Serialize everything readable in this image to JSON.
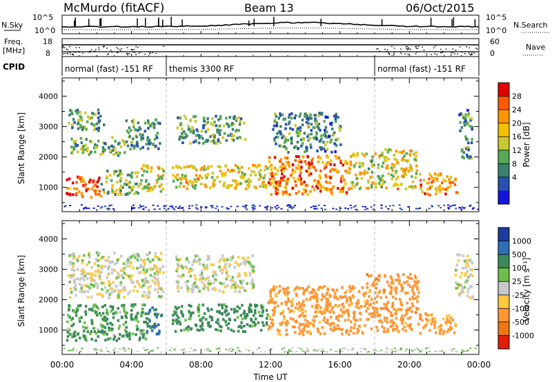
{
  "header": {
    "station": "McMurdo (fitACF)",
    "beam": "Beam 13",
    "date": "06/Oct/2015"
  },
  "top_panels": {
    "nsky_label": "N.Sky",
    "nsky_ticks": [
      "10^5",
      "10^0"
    ],
    "nsearch_label": "N.Search",
    "nsearch_ticks": [
      "10^5",
      "10^0"
    ],
    "freq_label_line1": "Freq.",
    "freq_label_line2": "[MHz]",
    "freq_ticks": [
      "18",
      "8"
    ],
    "nave_label": "Nave",
    "nave_ticks": [
      "60",
      "0"
    ],
    "cpid_label": "CPID",
    "cpid_segments": [
      {
        "label": "normal (fast) -151 RF",
        "start_h": 0,
        "end_h": 6
      },
      {
        "label": "themis 3300 RF",
        "start_h": 6,
        "end_h": 18
      },
      {
        "label": "normal (fast) -151 RF",
        "start_h": 18,
        "end_h": 24
      }
    ]
  },
  "power_panel": {
    "ylabel": "Slant Range [km]",
    "colorbar_label": "Power [dB]",
    "colorbar_ticks": [
      "28",
      "24",
      "20",
      "16",
      "12",
      "8",
      "4"
    ],
    "colors": [
      "#e00000",
      "#ff5a00",
      "#ff9600",
      "#f4c000",
      "#c8c832",
      "#55aa55",
      "#3c7f6e",
      "#2850b0",
      "#1414dc"
    ]
  },
  "velocity_panel": {
    "ylabel": "Slant Range [km]",
    "colorbar_label": "Velocity [m s⁻¹]",
    "colorbar_ticks": [
      "1000",
      "500",
      "100",
      "25",
      "-25",
      "-100",
      "-500",
      "-1000"
    ],
    "colors": [
      "#1e3ca0",
      "#2e6eb4",
      "#3c8a5a",
      "#6cc04a",
      "#c8c8c8",
      "#ffc840",
      "#ff9632",
      "#f07814",
      "#e01e0a"
    ]
  },
  "x_axis": {
    "label": "Time UT",
    "tick_labels": [
      "00:00",
      "04:00",
      "08:00",
      "12:00",
      "16:00",
      "20:00",
      "00:00"
    ]
  },
  "chart_data": {
    "type": "heatmap",
    "title": "McMurdo (fitACF)   Beam 13   06/Oct/2015",
    "xlabel": "Time UT",
    "ylabel": "Slant Range [km]",
    "xlim": [
      0,
      24
    ],
    "ylim": [
      200,
      4600
    ],
    "x_ticks": [
      "00:00",
      "04:00",
      "08:00",
      "12:00",
      "16:00",
      "20:00",
      "00:00"
    ],
    "y_ticks": [
      1000,
      2000,
      3000,
      4000
    ],
    "panels": [
      {
        "name": "Power",
        "units": "dB",
        "scale": [
          0,
          30
        ],
        "ticks": [
          4,
          8,
          12,
          16,
          20,
          24,
          28
        ],
        "regions": [
          {
            "t0": 0.2,
            "t1": 2.2,
            "r0": 600,
            "r1": 1300,
            "level": 26
          },
          {
            "t0": 2.2,
            "t1": 4.4,
            "r0": 700,
            "r1": 1500,
            "level": 14
          },
          {
            "t0": 4.4,
            "t1": 5.8,
            "r0": 800,
            "r1": 1700,
            "level": 16
          },
          {
            "t0": 0.4,
            "t1": 3.6,
            "r0": 2000,
            "r1": 2600,
            "level": 11
          },
          {
            "t0": 3.6,
            "t1": 5.6,
            "r0": 2200,
            "r1": 3200,
            "level": 9
          },
          {
            "t0": 0.3,
            "t1": 2.4,
            "r0": 2800,
            "r1": 3500,
            "level": 10
          },
          {
            "t0": 6.3,
            "t1": 11.8,
            "r0": 900,
            "r1": 1700,
            "level": 18
          },
          {
            "t0": 6.5,
            "t1": 10.5,
            "r0": 2400,
            "r1": 3300,
            "level": 10
          },
          {
            "t0": 11.8,
            "t1": 16.5,
            "r0": 700,
            "r1": 2000,
            "level": 24
          },
          {
            "t0": 12.0,
            "t1": 16.0,
            "r0": 2100,
            "r1": 3400,
            "level": 8
          },
          {
            "t0": 16.5,
            "t1": 18.5,
            "r0": 900,
            "r1": 2100,
            "level": 16
          },
          {
            "t0": 18.5,
            "t1": 20.4,
            "r0": 900,
            "r1": 2200,
            "level": 18
          },
          {
            "t0": 20.5,
            "t1": 22.8,
            "r0": 700,
            "r1": 1400,
            "level": 22
          },
          {
            "t0": 22.8,
            "t1": 23.6,
            "r0": 1900,
            "r1": 3500,
            "level": 8
          }
        ]
      },
      {
        "name": "Velocity",
        "units": "m s-1",
        "scale": [
          -1000,
          1000
        ],
        "ticks": [
          1000,
          500,
          100,
          25,
          -25,
          -100,
          -500,
          -1000
        ],
        "regions": [
          {
            "t0": 0.2,
            "t1": 4.8,
            "r0": 600,
            "r1": 1800,
            "level": 150
          },
          {
            "t0": 4.8,
            "t1": 5.8,
            "r0": 800,
            "r1": 1700,
            "level": 600
          },
          {
            "t0": 0.3,
            "t1": 5.8,
            "r0": 2000,
            "r1": 3500,
            "level": 0
          },
          {
            "t0": 6.3,
            "t1": 11.8,
            "r0": 900,
            "r1": 1800,
            "level": 200
          },
          {
            "t0": 6.5,
            "t1": 11.0,
            "r0": 2200,
            "r1": 3400,
            "level": 0
          },
          {
            "t0": 11.8,
            "t1": 17.5,
            "r0": 800,
            "r1": 2400,
            "level": -250
          },
          {
            "t0": 17.5,
            "t1": 20.5,
            "r0": 900,
            "r1": 2800,
            "level": -300
          },
          {
            "t0": 20.5,
            "t1": 22.6,
            "r0": 800,
            "r1": 1500,
            "level": -200
          },
          {
            "t0": 22.6,
            "t1": 23.6,
            "r0": 2000,
            "r1": 3500,
            "level": 0
          }
        ]
      }
    ]
  }
}
